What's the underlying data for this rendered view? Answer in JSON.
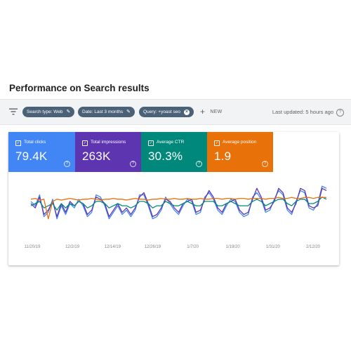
{
  "page": {
    "title": "Performance on Search results"
  },
  "toolbar": {
    "filters": [
      {
        "label": "Search type: Web",
        "icon": "pencil-icon"
      },
      {
        "label": "Date: Last 3 months",
        "icon": "pencil-icon"
      },
      {
        "label": "Query: +yoast seo",
        "icon": "close-icon"
      }
    ],
    "new_label": "NEW",
    "last_updated": "Last updated: 5 hours ago"
  },
  "metrics": [
    {
      "label": "Total clicks",
      "value": "79.4K",
      "color": "#4285f4"
    },
    {
      "label": "Total impressions",
      "value": "263K",
      "color": "#5e35b1"
    },
    {
      "label": "Average CTR",
      "value": "30.3%",
      "color": "#00897b"
    },
    {
      "label": "Average position",
      "value": "1.9",
      "color": "#e8710a"
    }
  ],
  "chart_data": {
    "type": "line",
    "x_ticks": [
      "11/20/19",
      "12/2/19",
      "12/14/19",
      "12/26/19",
      "1/7/20",
      "1/19/20",
      "1/31/20",
      "2/12/20"
    ],
    "grid": false,
    "series": [
      {
        "color": "#4285f4",
        "values": [
          0.55,
          0.45,
          0.7,
          0.2,
          0.3,
          0.6,
          0.15,
          0.45,
          0.25,
          0.5,
          0.4,
          0.6,
          0.45,
          0.2,
          0.3,
          0.7,
          0.65,
          0.45,
          0.15,
          0.3,
          0.45,
          0.25,
          0.35,
          0.2,
          0.35,
          0.7,
          0.7,
          0.45,
          0.15,
          0.2,
          0.35,
          0.65,
          0.5,
          0.35,
          0.25,
          0.45,
          0.6,
          0.55,
          0.25,
          0.3,
          0.65,
          0.75,
          0.6,
          0.35,
          0.25,
          0.45,
          0.6,
          0.55,
          0.3,
          0.2,
          0.25,
          0.65,
          0.75,
          0.6,
          0.3,
          0.35,
          0.6,
          0.8,
          0.7,
          0.35,
          0.25,
          0.55,
          0.8,
          0.75,
          0.4,
          0.35,
          0.5,
          0.9,
          0.85
        ]
      },
      {
        "color": "#5e35b1",
        "values": [
          0.5,
          0.4,
          0.65,
          0.25,
          0.35,
          0.55,
          0.2,
          0.5,
          0.3,
          0.55,
          0.45,
          0.55,
          0.5,
          0.25,
          0.35,
          0.65,
          0.6,
          0.5,
          0.2,
          0.35,
          0.5,
          0.3,
          0.4,
          0.25,
          0.4,
          0.65,
          0.75,
          0.5,
          0.2,
          0.25,
          0.4,
          0.6,
          0.55,
          0.4,
          0.3,
          0.5,
          0.55,
          0.6,
          0.3,
          0.35,
          0.6,
          0.8,
          0.65,
          0.4,
          0.3,
          0.5,
          0.55,
          0.6,
          0.35,
          0.25,
          0.3,
          0.6,
          0.85,
          0.65,
          0.35,
          0.4,
          0.55,
          0.85,
          0.75,
          0.4,
          0.3,
          0.5,
          0.85,
          0.8,
          0.45,
          0.4,
          0.45,
          0.85,
          0.8
        ]
      },
      {
        "color": "#00897b",
        "values": [
          0.45,
          0.5,
          0.55,
          0.4,
          0.45,
          0.5,
          0.35,
          0.5,
          0.4,
          0.5,
          0.45,
          0.55,
          0.5,
          0.4,
          0.45,
          0.55,
          0.55,
          0.5,
          0.4,
          0.45,
          0.5,
          0.45,
          0.45,
          0.4,
          0.45,
          0.55,
          0.55,
          0.5,
          0.4,
          0.45,
          0.45,
          0.55,
          0.5,
          0.45,
          0.45,
          0.5,
          0.55,
          0.5,
          0.45,
          0.45,
          0.55,
          0.55,
          0.55,
          0.45,
          0.45,
          0.5,
          0.55,
          0.5,
          0.45,
          0.45,
          0.45,
          0.55,
          0.6,
          0.55,
          0.45,
          0.5,
          0.55,
          0.6,
          0.6,
          0.5,
          0.45,
          0.55,
          0.6,
          0.6,
          0.5,
          0.5,
          0.55,
          0.65,
          0.6
        ]
      },
      {
        "color": "#e8710a",
        "values": [
          0.6,
          0.62,
          0.58,
          0.6,
          0.15,
          0.55,
          0.6,
          0.58,
          0.6,
          0.62,
          0.6,
          0.58,
          0.6,
          0.6,
          0.62,
          0.6,
          0.58,
          0.6,
          0.6,
          0.62,
          0.6,
          0.6,
          0.58,
          0.6,
          0.62,
          0.6,
          0.6,
          0.58,
          0.6,
          0.6,
          0.62,
          0.6,
          0.6,
          0.62,
          0.6,
          0.6,
          0.62,
          0.6,
          0.6,
          0.62,
          0.6,
          0.6,
          0.62,
          0.62,
          0.6,
          0.62,
          0.62,
          0.6,
          0.62,
          0.62,
          0.6,
          0.62,
          0.62,
          0.62,
          0.6,
          0.62,
          0.62,
          0.64,
          0.62,
          0.62,
          0.64,
          0.62,
          0.62,
          0.64,
          0.64,
          0.62,
          0.64,
          0.64,
          0.64
        ]
      }
    ]
  }
}
